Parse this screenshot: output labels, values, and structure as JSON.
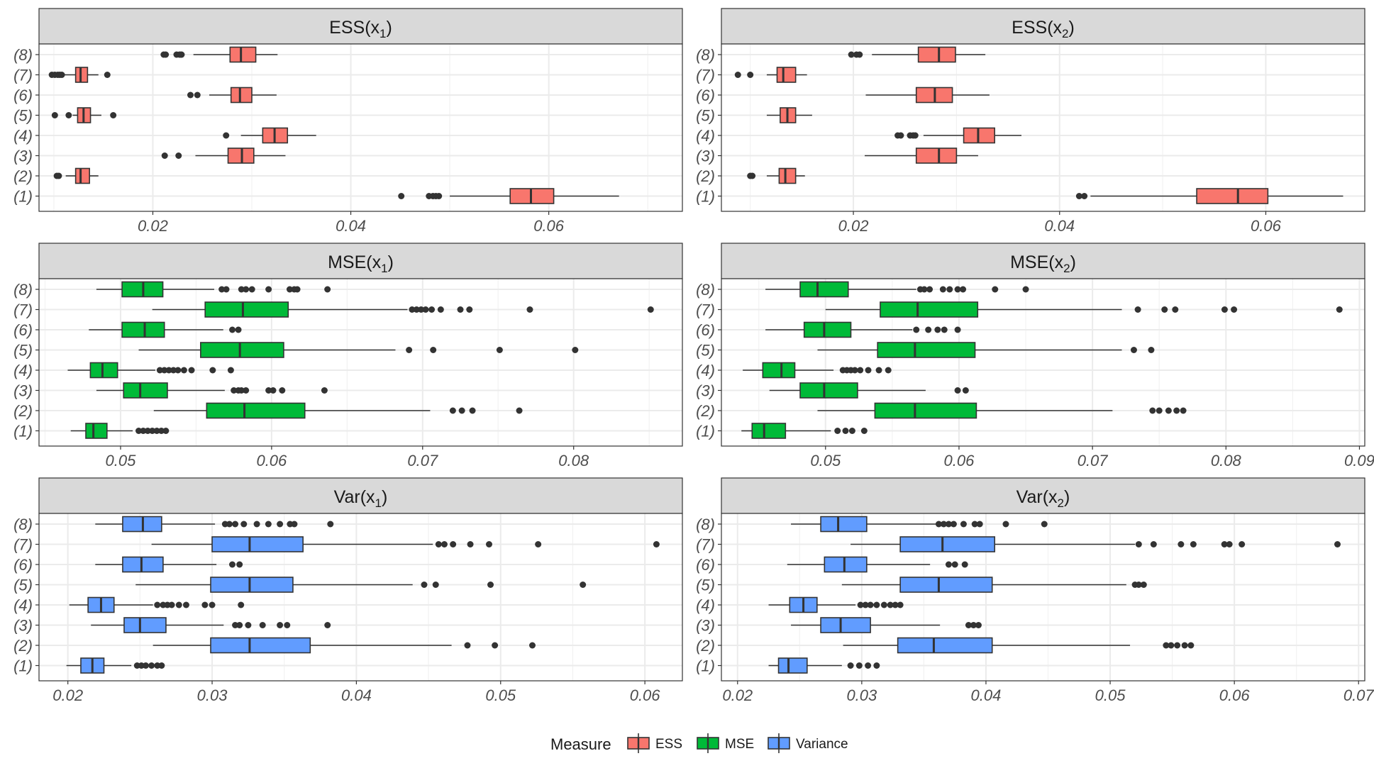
{
  "chart_data": {
    "type": "boxplot",
    "orientation": "horizontal",
    "categories": [
      "(8)",
      "(7)",
      "(6)",
      "(5)",
      "(4)",
      "(3)",
      "(2)",
      "(1)"
    ],
    "colors": {
      "ESS": "#F8766D",
      "MSE": "#00BA38",
      "Variance": "#619CFF"
    },
    "legend": {
      "title": "Measure",
      "entries": [
        "ESS",
        "MSE",
        "Variance"
      ],
      "position": "bottom"
    },
    "panels": [
      {
        "id": "ess-x1",
        "label": "ESS(x",
        "sub": "1",
        "label_end": ")",
        "measure": "ESS",
        "xlim": [
          0.0085,
          0.0735
        ],
        "ticks": [
          0.02,
          0.04,
          0.06
        ],
        "tick_labels": [
          "0.02",
          "0.04",
          "0.06"
        ],
        "boxes": [
          {
            "cat": "(8)",
            "wlo": 0.0241,
            "q1": 0.0278,
            "med": 0.0289,
            "q3": 0.0304,
            "whi": 0.0326,
            "outliers": [
              0.0211,
              0.0213,
              0.0224,
              0.0227,
              0.0229
            ]
          },
          {
            "cat": "(7)",
            "wlo": 0.011,
            "q1": 0.0122,
            "med": 0.0127,
            "q3": 0.0134,
            "whi": 0.0145,
            "outliers": [
              0.0098,
              0.0101,
              0.0104,
              0.0106,
              0.0108,
              0.0154
            ]
          },
          {
            "cat": "(6)",
            "wlo": 0.0257,
            "q1": 0.0279,
            "med": 0.0288,
            "q3": 0.03,
            "whi": 0.0325,
            "outliers": [
              0.0238,
              0.0245
            ]
          },
          {
            "cat": "(5)",
            "wlo": 0.0119,
            "q1": 0.0124,
            "med": 0.013,
            "q3": 0.0137,
            "whi": 0.0148,
            "outliers": [
              0.0101,
              0.0115,
              0.016
            ]
          },
          {
            "cat": "(4)",
            "wlo": 0.0289,
            "q1": 0.0311,
            "med": 0.0323,
            "q3": 0.0336,
            "whi": 0.0365,
            "outliers": [
              0.0274
            ]
          },
          {
            "cat": "(3)",
            "wlo": 0.0243,
            "q1": 0.0276,
            "med": 0.029,
            "q3": 0.0302,
            "whi": 0.0334,
            "outliers": [
              0.0212,
              0.0226
            ]
          },
          {
            "cat": "(2)",
            "wlo": 0.0112,
            "q1": 0.0122,
            "med": 0.0127,
            "q3": 0.0136,
            "whi": 0.0145,
            "outliers": [
              0.0103,
              0.0105
            ]
          },
          {
            "cat": "(1)",
            "wlo": 0.05,
            "q1": 0.0561,
            "med": 0.0582,
            "q3": 0.0605,
            "whi": 0.0671,
            "outliers": [
              0.0451,
              0.0479,
              0.0483,
              0.0486,
              0.0489
            ]
          }
        ]
      },
      {
        "id": "ess-x2",
        "label": "ESS(x",
        "sub": "2",
        "label_end": ")",
        "measure": "ESS",
        "xlim": [
          0.0072,
          0.0696
        ],
        "ticks": [
          0.02,
          0.04,
          0.06
        ],
        "tick_labels": [
          "0.02",
          "0.04",
          "0.06"
        ],
        "boxes": [
          {
            "cat": "(8)",
            "wlo": 0.0218,
            "q1": 0.0263,
            "med": 0.0283,
            "q3": 0.0299,
            "whi": 0.0328,
            "outliers": [
              0.0198,
              0.0203,
              0.0206
            ]
          },
          {
            "cat": "(7)",
            "wlo": 0.0116,
            "q1": 0.0126,
            "med": 0.0132,
            "q3": 0.0144,
            "whi": 0.0155,
            "outliers": [
              0.0088,
              0.01
            ]
          },
          {
            "cat": "(6)",
            "wlo": 0.0212,
            "q1": 0.0261,
            "med": 0.0279,
            "q3": 0.0296,
            "whi": 0.0332,
            "outliers": []
          },
          {
            "cat": "(5)",
            "wlo": 0.0116,
            "q1": 0.0129,
            "med": 0.0136,
            "q3": 0.0144,
            "whi": 0.016,
            "outliers": []
          },
          {
            "cat": "(4)",
            "wlo": 0.0268,
            "q1": 0.0307,
            "med": 0.0321,
            "q3": 0.0337,
            "whi": 0.0363,
            "outliers": [
              0.0243,
              0.0246,
              0.0255,
              0.0258,
              0.026
            ]
          },
          {
            "cat": "(3)",
            "wlo": 0.0211,
            "q1": 0.0261,
            "med": 0.0283,
            "q3": 0.03,
            "whi": 0.0321,
            "outliers": []
          },
          {
            "cat": "(2)",
            "wlo": 0.0116,
            "q1": 0.0128,
            "med": 0.0134,
            "q3": 0.0144,
            "whi": 0.0153,
            "outliers": [
              0.01,
              0.0102
            ]
          },
          {
            "cat": "(1)",
            "wlo": 0.043,
            "q1": 0.0533,
            "med": 0.0573,
            "q3": 0.0602,
            "whi": 0.0675,
            "outliers": [
              0.0419,
              0.0424
            ]
          }
        ]
      },
      {
        "id": "mse-x1",
        "label": "MSE(x",
        "sub": "1",
        "label_end": ")",
        "measure": "MSE",
        "xlim": [
          0.0446,
          0.0872
        ],
        "ticks": [
          0.05,
          0.06,
          0.07,
          0.08
        ],
        "tick_labels": [
          "0.05",
          "0.06",
          "0.07",
          "0.08"
        ],
        "boxes": [
          {
            "cat": "(8)",
            "wlo": 0.0484,
            "q1": 0.0501,
            "med": 0.0515,
            "q3": 0.0528,
            "whi": 0.0562,
            "outliers": [
              0.0567,
              0.057,
              0.058,
              0.0583,
              0.0587,
              0.0598,
              0.0612,
              0.0615,
              0.0617,
              0.0637
            ]
          },
          {
            "cat": "(7)",
            "wlo": 0.0521,
            "q1": 0.0556,
            "med": 0.0581,
            "q3": 0.0611,
            "whi": 0.069,
            "outliers": [
              0.0693,
              0.0696,
              0.0699,
              0.0702,
              0.0706,
              0.0712,
              0.0725,
              0.0731,
              0.0771,
              0.0851
            ]
          },
          {
            "cat": "(6)",
            "wlo": 0.0479,
            "q1": 0.0501,
            "med": 0.0516,
            "q3": 0.0529,
            "whi": 0.0568,
            "outliers": [
              0.0574,
              0.0578
            ]
          },
          {
            "cat": "(5)",
            "wlo": 0.0512,
            "q1": 0.0553,
            "med": 0.0579,
            "q3": 0.0608,
            "whi": 0.0682,
            "outliers": [
              0.0691,
              0.0707,
              0.0751,
              0.0801
            ]
          },
          {
            "cat": "(4)",
            "wlo": 0.0465,
            "q1": 0.048,
            "med": 0.0488,
            "q3": 0.0498,
            "whi": 0.0523,
            "outliers": [
              0.0526,
              0.0529,
              0.0532,
              0.0535,
              0.0538,
              0.0542,
              0.0547,
              0.0561,
              0.0573
            ]
          },
          {
            "cat": "(3)",
            "wlo": 0.0484,
            "q1": 0.0502,
            "med": 0.0513,
            "q3": 0.0531,
            "whi": 0.0569,
            "outliers": [
              0.0575,
              0.0578,
              0.058,
              0.0583,
              0.0598,
              0.0601,
              0.0607,
              0.0635
            ]
          },
          {
            "cat": "(2)",
            "wlo": 0.0522,
            "q1": 0.0557,
            "med": 0.0582,
            "q3": 0.0622,
            "whi": 0.0705,
            "outliers": [
              0.072,
              0.0726,
              0.0733,
              0.0764
            ]
          },
          {
            "cat": "(1)",
            "wlo": 0.0467,
            "q1": 0.0477,
            "med": 0.0482,
            "q3": 0.0491,
            "whi": 0.0508,
            "outliers": [
              0.0512,
              0.0515,
              0.0518,
              0.0521,
              0.0524,
              0.0527,
              0.053
            ]
          }
        ]
      },
      {
        "id": "mse-x2",
        "label": "MSE(x",
        "sub": "2",
        "label_end": ")",
        "measure": "MSE",
        "xlim": [
          0.0422,
          0.0904
        ],
        "ticks": [
          0.05,
          0.06,
          0.07,
          0.08,
          0.09
        ],
        "tick_labels": [
          "0.05",
          "0.06",
          "0.07",
          "0.08",
          "0.09"
        ],
        "boxes": [
          {
            "cat": "(8)",
            "wlo": 0.0455,
            "q1": 0.0481,
            "med": 0.0494,
            "q3": 0.0517,
            "whi": 0.0568,
            "outliers": [
              0.0571,
              0.0574,
              0.0578,
              0.0588,
              0.0593,
              0.0599,
              0.0603,
              0.0627,
              0.065
            ]
          },
          {
            "cat": "(7)",
            "wlo": 0.05,
            "q1": 0.0541,
            "med": 0.0569,
            "q3": 0.0614,
            "whi": 0.0722,
            "outliers": [
              0.0734,
              0.0754,
              0.0762,
              0.0799,
              0.0806,
              0.0885
            ]
          },
          {
            "cat": "(6)",
            "wlo": 0.0455,
            "q1": 0.0484,
            "med": 0.0499,
            "q3": 0.0519,
            "whi": 0.0565,
            "outliers": [
              0.0568,
              0.0577,
              0.0584,
              0.0589,
              0.0599
            ]
          },
          {
            "cat": "(5)",
            "wlo": 0.0494,
            "q1": 0.0539,
            "med": 0.0567,
            "q3": 0.0612,
            "whi": 0.0722,
            "outliers": [
              0.0731,
              0.0744
            ]
          },
          {
            "cat": "(4)",
            "wlo": 0.0438,
            "q1": 0.0453,
            "med": 0.0467,
            "q3": 0.0477,
            "whi": 0.0506,
            "outliers": [
              0.0513,
              0.0516,
              0.0519,
              0.0522,
              0.0526,
              0.0532,
              0.054,
              0.0547
            ]
          },
          {
            "cat": "(3)",
            "wlo": 0.0458,
            "q1": 0.0481,
            "med": 0.0499,
            "q3": 0.0524,
            "whi": 0.0575,
            "outliers": [
              0.0599,
              0.0605
            ]
          },
          {
            "cat": "(2)",
            "wlo": 0.0494,
            "q1": 0.0537,
            "med": 0.0567,
            "q3": 0.0613,
            "whi": 0.0715,
            "outliers": [
              0.0745,
              0.075,
              0.0757,
              0.0763,
              0.0768
            ]
          },
          {
            "cat": "(1)",
            "wlo": 0.0437,
            "q1": 0.0445,
            "med": 0.0454,
            "q3": 0.047,
            "whi": 0.0504,
            "outliers": [
              0.0509,
              0.0515,
              0.052,
              0.0529
            ]
          }
        ]
      },
      {
        "id": "var-x1",
        "label": "Var(x",
        "sub": "1",
        "label_end": ")",
        "measure": "Variance",
        "xlim": [
          0.018,
          0.0626
        ],
        "ticks": [
          0.02,
          0.03,
          0.04,
          0.05,
          0.06
        ],
        "tick_labels": [
          "0.02",
          "0.03",
          "0.04",
          "0.05",
          "0.06"
        ],
        "boxes": [
          {
            "cat": "(8)",
            "wlo": 0.0219,
            "q1": 0.0238,
            "med": 0.0252,
            "q3": 0.0265,
            "whi": 0.0302,
            "outliers": [
              0.0309,
              0.0312,
              0.0316,
              0.0322,
              0.0331,
              0.0339,
              0.0347,
              0.0354,
              0.0357,
              0.0382
            ]
          },
          {
            "cat": "(7)",
            "wlo": 0.0258,
            "q1": 0.03,
            "med": 0.0326,
            "q3": 0.0363,
            "whi": 0.0453,
            "outliers": [
              0.0457,
              0.0461,
              0.0467,
              0.0479,
              0.0492,
              0.0526,
              0.0608
            ]
          },
          {
            "cat": "(6)",
            "wlo": 0.0219,
            "q1": 0.0238,
            "med": 0.0251,
            "q3": 0.0266,
            "whi": 0.0303,
            "outliers": [
              0.0314,
              0.0319
            ]
          },
          {
            "cat": "(5)",
            "wlo": 0.0247,
            "q1": 0.0299,
            "med": 0.0326,
            "q3": 0.0356,
            "whi": 0.0439,
            "outliers": [
              0.0447,
              0.0455,
              0.0493,
              0.0557
            ]
          },
          {
            "cat": "(4)",
            "wlo": 0.0201,
            "q1": 0.0214,
            "med": 0.0223,
            "q3": 0.0232,
            "whi": 0.0259,
            "outliers": [
              0.0262,
              0.0266,
              0.0269,
              0.0272,
              0.0277,
              0.0282,
              0.0295,
              0.03,
              0.032
            ]
          },
          {
            "cat": "(3)",
            "wlo": 0.0216,
            "q1": 0.0239,
            "med": 0.025,
            "q3": 0.0268,
            "whi": 0.0308,
            "outliers": [
              0.0316,
              0.0319,
              0.0325,
              0.0335,
              0.0347,
              0.0352,
              0.038
            ]
          },
          {
            "cat": "(2)",
            "wlo": 0.0259,
            "q1": 0.0299,
            "med": 0.0326,
            "q3": 0.0368,
            "whi": 0.0466,
            "outliers": [
              0.0477,
              0.0496,
              0.0522
            ]
          },
          {
            "cat": "(1)",
            "wlo": 0.0199,
            "q1": 0.0209,
            "med": 0.0217,
            "q3": 0.0225,
            "whi": 0.0244,
            "outliers": [
              0.0248,
              0.0251,
              0.0254,
              0.0258,
              0.0262,
              0.0265
            ]
          }
        ]
      },
      {
        "id": "var-x2",
        "label": "Var(x",
        "sub": "2",
        "label_end": ")",
        "measure": "Variance",
        "xlim": [
          0.0187,
          0.0705
        ],
        "ticks": [
          0.02,
          0.03,
          0.04,
          0.05,
          0.06,
          0.07
        ],
        "tick_labels": [
          "0.02",
          "0.03",
          "0.04",
          "0.05",
          "0.06",
          "0.07"
        ],
        "boxes": [
          {
            "cat": "(8)",
            "wlo": 0.0243,
            "q1": 0.0267,
            "med": 0.0281,
            "q3": 0.0304,
            "whi": 0.036,
            "outliers": [
              0.0362,
              0.0366,
              0.037,
              0.0374,
              0.0382,
              0.0391,
              0.0395,
              0.0416,
              0.0447
            ]
          },
          {
            "cat": "(7)",
            "wlo": 0.0291,
            "q1": 0.0331,
            "med": 0.0365,
            "q3": 0.0407,
            "whi": 0.052,
            "outliers": [
              0.0523,
              0.0535,
              0.0557,
              0.0567,
              0.0592,
              0.0596,
              0.0606,
              0.0683
            ]
          },
          {
            "cat": "(6)",
            "wlo": 0.024,
            "q1": 0.027,
            "med": 0.0286,
            "q3": 0.0304,
            "whi": 0.0355,
            "outliers": [
              0.037,
              0.0375,
              0.0383
            ]
          },
          {
            "cat": "(5)",
            "wlo": 0.0284,
            "q1": 0.0331,
            "med": 0.0362,
            "q3": 0.0405,
            "whi": 0.0513,
            "outliers": [
              0.052,
              0.0523,
              0.0527
            ]
          },
          {
            "cat": "(4)",
            "wlo": 0.0225,
            "q1": 0.0242,
            "med": 0.0253,
            "q3": 0.0264,
            "whi": 0.0295,
            "outliers": [
              0.0299,
              0.0303,
              0.0307,
              0.0312,
              0.0318,
              0.0323,
              0.0327,
              0.0331
            ]
          },
          {
            "cat": "(3)",
            "wlo": 0.0243,
            "q1": 0.0267,
            "med": 0.0283,
            "q3": 0.0307,
            "whi": 0.0363,
            "outliers": [
              0.0386,
              0.039,
              0.0394
            ]
          },
          {
            "cat": "(2)",
            "wlo": 0.0285,
            "q1": 0.0329,
            "med": 0.0358,
            "q3": 0.0405,
            "whi": 0.0516,
            "outliers": [
              0.0545,
              0.0549,
              0.0554,
              0.056,
              0.0565
            ]
          },
          {
            "cat": "(1)",
            "wlo": 0.0225,
            "q1": 0.0233,
            "med": 0.0241,
            "q3": 0.0256,
            "whi": 0.0284,
            "outliers": [
              0.0291,
              0.0298,
              0.0305,
              0.0312
            ]
          }
        ]
      }
    ]
  }
}
